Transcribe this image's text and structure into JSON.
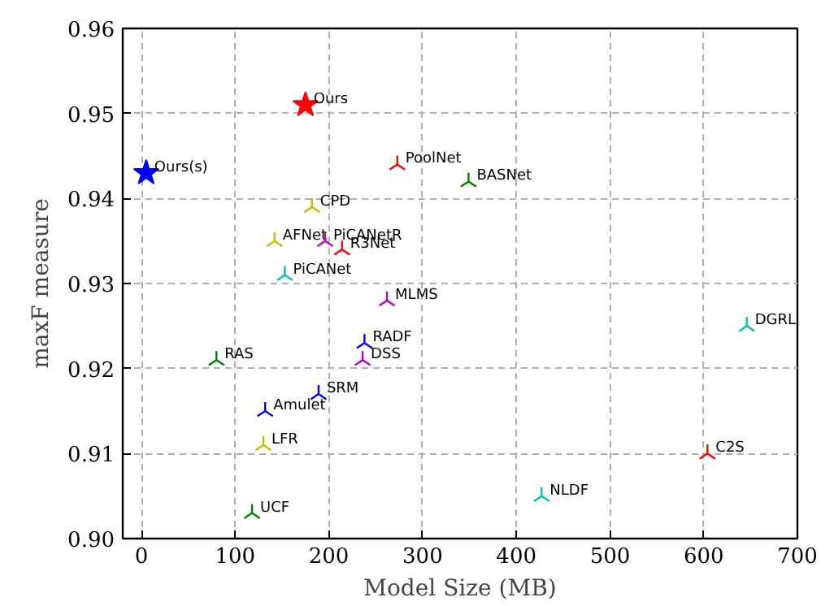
{
  "chart_data": {
    "type": "scatter",
    "xlabel": "Model Size (MB)",
    "ylabel": "maxF measure",
    "xlim": [
      -20,
      700
    ],
    "ylim": [
      0.9,
      0.96
    ],
    "xticks": [
      0,
      100,
      200,
      300,
      400,
      500,
      600,
      700
    ],
    "yticks": [
      {
        "value": 0.9,
        "label": "0.90"
      },
      0.91,
      0.92,
      0.93,
      0.94,
      0.95,
      0.96
    ],
    "grid": true,
    "series": [
      {
        "name": "Ours",
        "color": "#ff0000",
        "marker": "star",
        "x": [
          175
        ],
        "values": [
          0.951
        ]
      },
      {
        "name": "Ours(s)",
        "color": "#0000ff",
        "marker": "star",
        "x": [
          5
        ],
        "values": [
          0.943
        ]
      },
      {
        "name": "PoolNet",
        "color": "#ff0000",
        "marker": "cross",
        "x": [
          273
        ],
        "values": [
          0.944
        ]
      },
      {
        "name": "BASNet",
        "color": "#008000",
        "marker": "cross",
        "x": [
          349
        ],
        "values": [
          0.942
        ]
      },
      {
        "name": "CPD",
        "color": "#bfbf00",
        "marker": "cross",
        "x": [
          182
        ],
        "values": [
          0.939
        ]
      },
      {
        "name": "AFNet",
        "color": "#bfbf00",
        "marker": "cross",
        "x": [
          142
        ],
        "values": [
          0.935
        ]
      },
      {
        "name": "PiCANetR",
        "color": "#bf00bf",
        "marker": "cross",
        "x": [
          196
        ],
        "values": [
          0.935
        ]
      },
      {
        "name": "R3Net",
        "color": "#ff0000",
        "marker": "cross",
        "x": [
          214
        ],
        "values": [
          0.934
        ]
      },
      {
        "name": "PiCANet",
        "color": "#00bfbf",
        "marker": "cross",
        "x": [
          153
        ],
        "values": [
          0.931
        ]
      },
      {
        "name": "MLMS",
        "color": "#bf00bf",
        "marker": "cross",
        "x": [
          262
        ],
        "values": [
          0.928
        ]
      },
      {
        "name": "RADF",
        "color": "#0000ff",
        "marker": "cross",
        "x": [
          238
        ],
        "values": [
          0.923
        ]
      },
      {
        "name": "DSS",
        "color": "#bf00bf",
        "marker": "cross",
        "x": [
          236
        ],
        "values": [
          0.921
        ]
      },
      {
        "name": "RAS",
        "color": "#008000",
        "marker": "cross",
        "x": [
          80
        ],
        "values": [
          0.921
        ]
      },
      {
        "name": "SRM",
        "color": "#0000ff",
        "marker": "cross",
        "x": [
          189
        ],
        "values": [
          0.917
        ]
      },
      {
        "name": "Amulet",
        "color": "#0000ff",
        "marker": "cross",
        "x": [
          132
        ],
        "values": [
          0.915
        ]
      },
      {
        "name": "LFR",
        "color": "#bfbf00",
        "marker": "cross",
        "x": [
          130
        ],
        "values": [
          0.911
        ]
      },
      {
        "name": "UCF",
        "color": "#008000",
        "marker": "cross",
        "x": [
          118
        ],
        "values": [
          0.903
        ]
      },
      {
        "name": "NLDF",
        "color": "#00bfbf",
        "marker": "cross",
        "x": [
          427
        ],
        "values": [
          0.905
        ]
      },
      {
        "name": "C2S",
        "color": "#ff0000",
        "marker": "cross",
        "x": [
          604
        ],
        "values": [
          0.91
        ]
      },
      {
        "name": "DGRL",
        "color": "#00bfbf",
        "marker": "cross",
        "x": [
          646
        ],
        "values": [
          0.925
        ]
      }
    ]
  }
}
